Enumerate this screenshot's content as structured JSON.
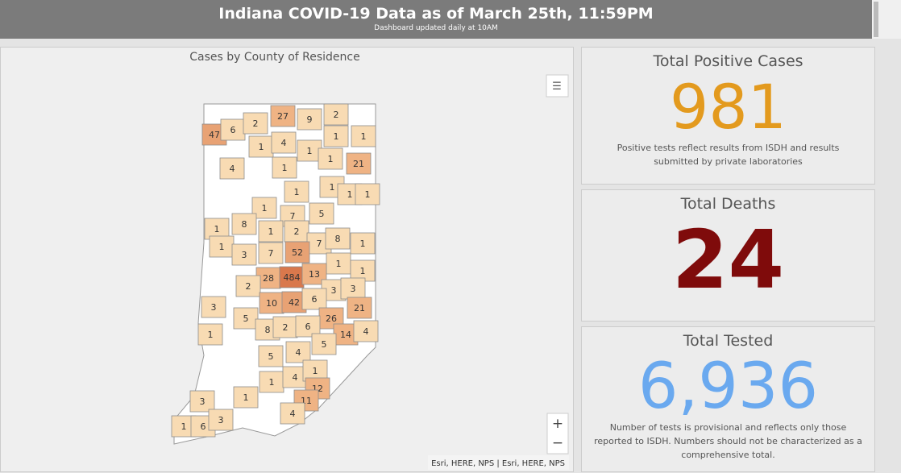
{
  "header": {
    "title": "Indiana COVID-19 Data as of March 25th, 11:59PM",
    "subtitle": "Dashboard updated daily at 10AM"
  },
  "map": {
    "title": "Cases by County of Residence",
    "attribution": "Esri, HERE, NPS | Esri, HERE, NPS",
    "counties": [
      {
        "value": 47,
        "color": "#e8a274"
      },
      {
        "value": 6,
        "color": "#f8dbb3"
      },
      {
        "value": 2,
        "color": "#f8dbb3"
      },
      {
        "value": 27,
        "color": "#efb384"
      },
      {
        "value": 9,
        "color": "#f8dbb3"
      },
      {
        "value": 2,
        "color": "#f8dbb3"
      },
      {
        "value": 1,
        "color": "#f8dbb3"
      },
      {
        "value": 4,
        "color": "#f8dbb3"
      },
      {
        "value": 1,
        "color": "#f8dbb3"
      },
      {
        "value": 1,
        "color": "#f8dbb3"
      },
      {
        "value": 1,
        "color": "#f8dbb3"
      },
      {
        "value": 4,
        "color": "#f8dbb3"
      },
      {
        "value": 1,
        "color": "#f8dbb3"
      },
      {
        "value": 1,
        "color": "#f8dbb3"
      },
      {
        "value": 21,
        "color": "#efb384"
      },
      {
        "value": 1,
        "color": "#f8dbb3"
      },
      {
        "value": 1,
        "color": "#f8dbb3"
      },
      {
        "value": 1,
        "color": "#f8dbb3"
      },
      {
        "value": 1,
        "color": "#f8dbb3"
      },
      {
        "value": 1,
        "color": "#f8dbb3"
      },
      {
        "value": 7,
        "color": "#f8dbb3"
      },
      {
        "value": 5,
        "color": "#f8dbb3"
      },
      {
        "value": 1,
        "color": "#f8dbb3"
      },
      {
        "value": 8,
        "color": "#f8dbb3"
      },
      {
        "value": 1,
        "color": "#f8dbb3"
      },
      {
        "value": 2,
        "color": "#f8dbb3"
      },
      {
        "value": 7,
        "color": "#f8dbb3"
      },
      {
        "value": 8,
        "color": "#f8dbb3"
      },
      {
        "value": 1,
        "color": "#f8dbb3"
      },
      {
        "value": 1,
        "color": "#f8dbb3"
      },
      {
        "value": 3,
        "color": "#f8dbb3"
      },
      {
        "value": 7,
        "color": "#f8dbb3"
      },
      {
        "value": 52,
        "color": "#e8a274"
      },
      {
        "value": 1,
        "color": "#f8dbb3"
      },
      {
        "value": 1,
        "color": "#f8dbb3"
      },
      {
        "value": 28,
        "color": "#efb384"
      },
      {
        "value": 484,
        "color": "#d9784c"
      },
      {
        "value": 13,
        "color": "#efb384"
      },
      {
        "value": 2,
        "color": "#f8dbb3"
      },
      {
        "value": 3,
        "color": "#f8dbb3"
      },
      {
        "value": 3,
        "color": "#f8dbb3"
      },
      {
        "value": 3,
        "color": "#f8dbb3"
      },
      {
        "value": 10,
        "color": "#efb384"
      },
      {
        "value": 42,
        "color": "#e8a274"
      },
      {
        "value": 6,
        "color": "#f8dbb3"
      },
      {
        "value": 21,
        "color": "#efb384"
      },
      {
        "value": 5,
        "color": "#f8dbb3"
      },
      {
        "value": 26,
        "color": "#efb384"
      },
      {
        "value": 1,
        "color": "#f8dbb3"
      },
      {
        "value": 8,
        "color": "#f8dbb3"
      },
      {
        "value": 2,
        "color": "#f8dbb3"
      },
      {
        "value": 6,
        "color": "#f8dbb3"
      },
      {
        "value": 14,
        "color": "#efb384"
      },
      {
        "value": 4,
        "color": "#f8dbb3"
      },
      {
        "value": 5,
        "color": "#f8dbb3"
      },
      {
        "value": 5,
        "color": "#f8dbb3"
      },
      {
        "value": 4,
        "color": "#f8dbb3"
      },
      {
        "value": 1,
        "color": "#f8dbb3"
      },
      {
        "value": 4,
        "color": "#f8dbb3"
      },
      {
        "value": 1,
        "color": "#f8dbb3"
      },
      {
        "value": 12,
        "color": "#efb384"
      },
      {
        "value": 3,
        "color": "#f8dbb3"
      },
      {
        "value": 1,
        "color": "#f8dbb3"
      },
      {
        "value": 11,
        "color": "#efb384"
      },
      {
        "value": 1,
        "color": "#f8dbb3"
      },
      {
        "value": 6,
        "color": "#f8dbb3"
      },
      {
        "value": 3,
        "color": "#f8dbb3"
      },
      {
        "value": 4,
        "color": "#f8dbb3"
      }
    ]
  },
  "cards": [
    {
      "title": "Total Positive Cases",
      "value": 981,
      "color": "#e39a1e",
      "note": "Positive tests reflect results from ISDH and results submitted by private laboratories"
    },
    {
      "title": "Total Deaths",
      "value": 24,
      "color": "#7f0b0b"
    },
    {
      "title": "Total Tested",
      "value": {
        "value": 6936,
        "label": "6,936"
      },
      "color": "#6aa9ef",
      "note": "Number of tests is provisional and reflects only those reported to ISDH. Numbers should not be characterized as a comprehensive total."
    }
  ]
}
